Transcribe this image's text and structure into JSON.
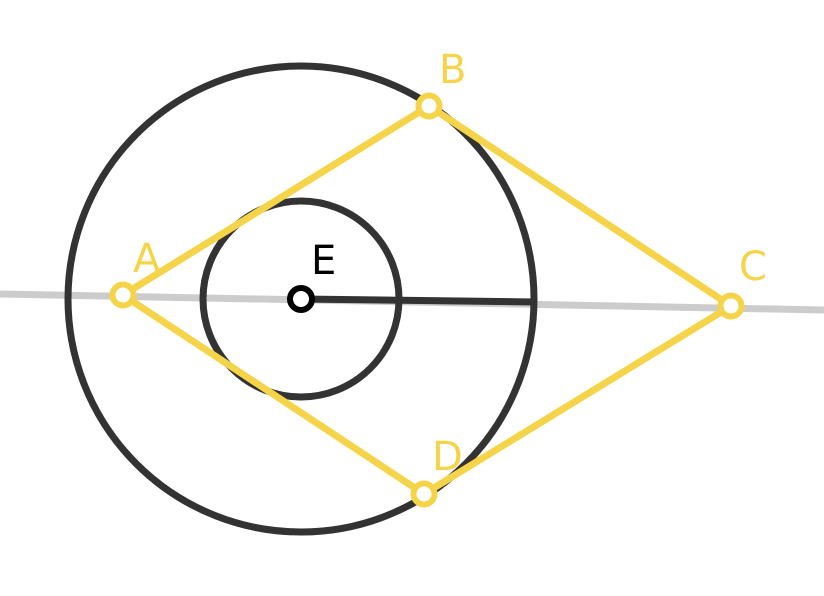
{
  "colors": {
    "background": "#ffffff",
    "axis_line": "#cccccc",
    "circle_stroke": "#333333",
    "rhombus": "#f5d44a",
    "center_point": "#000000",
    "label_center": "#000000"
  },
  "points": {
    "A": {
      "label": "A"
    },
    "B": {
      "label": "B"
    },
    "C": {
      "label": "C"
    },
    "D": {
      "label": "D"
    },
    "E": {
      "label": "E"
    }
  }
}
